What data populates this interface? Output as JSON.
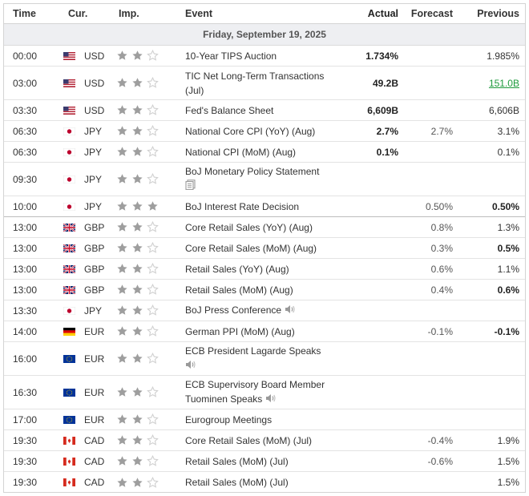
{
  "headers": {
    "time": "Time",
    "currency": "Cur.",
    "importance": "Imp.",
    "event": "Event",
    "actual": "Actual",
    "forecast": "Forecast",
    "previous": "Previous"
  },
  "date_label": "Friday, September 19, 2025",
  "colors": {
    "star_filled": "#9e9e9e",
    "star_empty": "#d0d0d0",
    "prev_up": "#1d9a3c",
    "border": "#d4d4d4",
    "day_bg": "#eeeff2"
  },
  "rows": [
    {
      "time": "00:00",
      "flag": "us-flag-icon",
      "currency": "USD",
      "stars": 2,
      "event": "10-Year TIPS Auction",
      "actual": "1.734%",
      "forecast": "",
      "previous": "1.985%"
    },
    {
      "time": "03:00",
      "flag": "us-flag-icon",
      "currency": "USD",
      "stars": 2,
      "event": "TIC Net Long-Term Transactions (Jul)",
      "actual": "49.2B",
      "forecast": "",
      "previous": "151.0B",
      "previous_style": "green"
    },
    {
      "time": "03:30",
      "flag": "us-flag-icon",
      "currency": "USD",
      "stars": 2,
      "event": "Fed's Balance Sheet",
      "actual": "6,609B",
      "forecast": "",
      "previous": "6,606B"
    },
    {
      "time": "06:30",
      "flag": "jp-flag-icon",
      "currency": "JPY",
      "stars": 2,
      "event": "National Core CPI (YoY) (Aug)",
      "actual": "2.7%",
      "forecast": "2.7%",
      "previous": "3.1%"
    },
    {
      "time": "06:30",
      "flag": "jp-flag-icon",
      "currency": "JPY",
      "stars": 2,
      "event": "National CPI (MoM) (Aug)",
      "actual": "0.1%",
      "forecast": "",
      "previous": "0.1%"
    },
    {
      "time": "09:30",
      "flag": "jp-flag-icon",
      "currency": "JPY",
      "stars": 2,
      "event": "BoJ Monetary Policy Statement",
      "actual": "",
      "forecast": "",
      "previous": "",
      "icon": "document-icon"
    },
    {
      "time": "10:00",
      "flag": "jp-flag-icon",
      "currency": "JPY",
      "stars": 3,
      "event": "BoJ Interest Rate Decision",
      "actual": "",
      "forecast": "0.50%",
      "previous": "0.50%",
      "previous_bold": true,
      "separator": true
    },
    {
      "time": "13:00",
      "flag": "gb-flag-icon",
      "currency": "GBP",
      "stars": 2,
      "event": "Core Retail Sales (YoY) (Aug)",
      "actual": "",
      "forecast": "0.8%",
      "previous": "1.3%"
    },
    {
      "time": "13:00",
      "flag": "gb-flag-icon",
      "currency": "GBP",
      "stars": 2,
      "event": "Core Retail Sales (MoM) (Aug)",
      "actual": "",
      "forecast": "0.3%",
      "previous": "0.5%",
      "previous_bold": true
    },
    {
      "time": "13:00",
      "flag": "gb-flag-icon",
      "currency": "GBP",
      "stars": 2,
      "event": "Retail Sales (YoY) (Aug)",
      "actual": "",
      "forecast": "0.6%",
      "previous": "1.1%"
    },
    {
      "time": "13:00",
      "flag": "gb-flag-icon",
      "currency": "GBP",
      "stars": 2,
      "event": "Retail Sales (MoM) (Aug)",
      "actual": "",
      "forecast": "0.4%",
      "previous": "0.6%",
      "previous_bold": true
    },
    {
      "time": "13:30",
      "flag": "jp-flag-icon",
      "currency": "JPY",
      "stars": 2,
      "event": "BoJ Press Conference",
      "actual": "",
      "forecast": "",
      "previous": "",
      "icon": "speaker-icon"
    },
    {
      "time": "14:00",
      "flag": "de-flag-icon",
      "currency": "EUR",
      "stars": 2,
      "event": "German PPI (MoM) (Aug)",
      "actual": "",
      "forecast": "-0.1%",
      "previous": "-0.1%",
      "previous_bold": true
    },
    {
      "time": "16:00",
      "flag": "eu-flag-icon",
      "currency": "EUR",
      "stars": 2,
      "event": "ECB President Lagarde Speaks",
      "actual": "",
      "forecast": "",
      "previous": "",
      "icon": "speaker-icon",
      "icon_newline": true
    },
    {
      "time": "16:30",
      "flag": "eu-flag-icon",
      "currency": "EUR",
      "stars": 2,
      "event": "ECB Supervisory Board Member Tuominen Speaks",
      "actual": "",
      "forecast": "",
      "previous": "",
      "icon": "speaker-icon"
    },
    {
      "time": "17:00",
      "flag": "eu-flag-icon",
      "currency": "EUR",
      "stars": 2,
      "event": "Eurogroup Meetings",
      "actual": "",
      "forecast": "",
      "previous": ""
    },
    {
      "time": "19:30",
      "flag": "ca-flag-icon",
      "currency": "CAD",
      "stars": 2,
      "event": "Core Retail Sales (MoM) (Jul)",
      "actual": "",
      "forecast": "-0.4%",
      "previous": "1.9%"
    },
    {
      "time": "19:30",
      "flag": "ca-flag-icon",
      "currency": "CAD",
      "stars": 2,
      "event": "Retail Sales (MoM) (Jul)",
      "actual": "",
      "forecast": "-0.6%",
      "previous": "1.5%"
    },
    {
      "time": "19:30",
      "flag": "ca-flag-icon",
      "currency": "CAD",
      "stars": 2,
      "event": "Retail Sales (MoM) (Jul)",
      "actual": "",
      "forecast": "",
      "previous": "1.5%"
    }
  ]
}
